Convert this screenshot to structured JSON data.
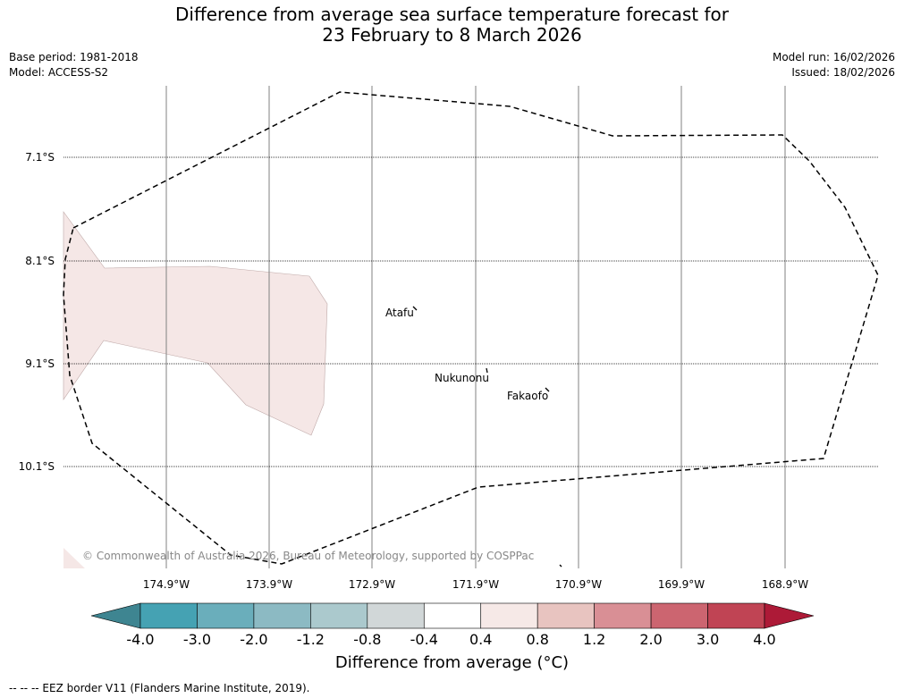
{
  "header": {
    "title_line1": "Difference from average sea surface temperature forecast for",
    "title_line2": "23 February to 8 March 2026",
    "base_period": "Base period: 1981-2018",
    "model": "Model: ACCESS-S2",
    "model_run": "Model run: 16/02/2026",
    "issued": "Issued: 18/02/2026"
  },
  "map": {
    "latitude_labels": [
      "7.1°S",
      "8.1°S",
      "9.1°S",
      "10.1°S"
    ],
    "longitude_labels": [
      "174.9°W",
      "173.9°W",
      "172.9°W",
      "171.9°W",
      "170.9°W",
      "169.9°W",
      "168.9°W"
    ],
    "places": [
      "Atafu",
      "Nukunonu",
      "Fakaofo"
    ],
    "copyright": "© Commonwealth of Australia 2026, Bureau of Meteorology, supported by COSPPac",
    "anomaly_fill_color": "#f5e7e6",
    "eez_line_color": "#000000"
  },
  "colorbar": {
    "ticks": [
      "-4.0",
      "-3.0",
      "-2.0",
      "-1.2",
      "-0.8",
      "-0.4",
      "0.4",
      "0.8",
      "1.2",
      "2.0",
      "3.0",
      "4.0"
    ],
    "under_color": "#3e8591",
    "bin_colors": [
      "#45a2b3",
      "#6aaebb",
      "#8cbac3",
      "#abc9cd",
      "#d1d7d8",
      "#ffffff",
      "#f6e9e7",
      "#e8c4c0",
      "#d98f95",
      "#cc6570",
      "#c04454"
    ],
    "over_color": "#ad1a37",
    "title": "Difference from average (°C)"
  },
  "footer": {
    "note": "--  --  -- EEZ border V11 (Flanders Marine Institute, 2019)."
  }
}
